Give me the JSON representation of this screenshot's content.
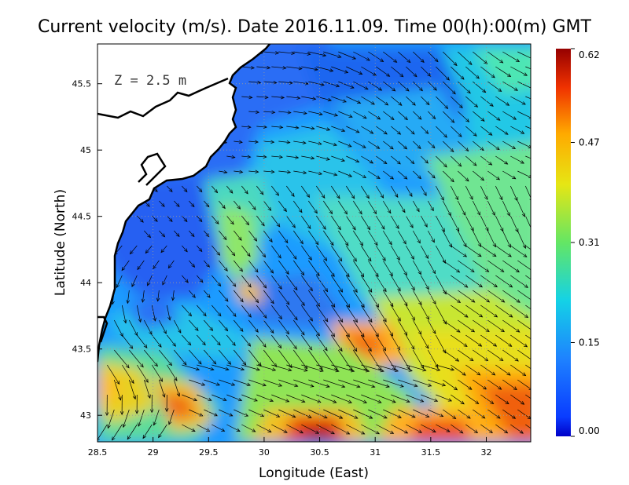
{
  "title": "Current velocity (m/s). Date 2016.11.09. Time 00(h):00(m) GMT",
  "depth_label": "Z = 2.5 m",
  "chart_data": {
    "type": "heatmap",
    "title": "Current velocity (m/s). Date 2016.11.09. Time 00(h):00(m) GMT",
    "xlabel": "Longitude (East)",
    "ylabel": "Latitude (North)",
    "xlim": [
      28.5,
      32.4
    ],
    "ylim": [
      42.8,
      45.8
    ],
    "x_ticks": [
      {
        "value": 28.5,
        "label": "28.5"
      },
      {
        "value": 29,
        "label": "29"
      },
      {
        "value": 29.5,
        "label": "29.5"
      },
      {
        "value": 30,
        "label": "30"
      },
      {
        "value": 30.5,
        "label": "30.5"
      },
      {
        "value": 31,
        "label": "31"
      },
      {
        "value": 31.5,
        "label": "31.5"
      },
      {
        "value": 32,
        "label": "32"
      }
    ],
    "y_ticks": [
      {
        "value": 43,
        "label": "43"
      },
      {
        "value": 43.5,
        "label": "43.5"
      },
      {
        "value": 44,
        "label": "44"
      },
      {
        "value": 44.5,
        "label": "44.5"
      },
      {
        "value": 45,
        "label": "45"
      },
      {
        "value": 45.5,
        "label": "45.5"
      }
    ],
    "grid": true,
    "colorbar": {
      "range": [
        0.0,
        0.62
      ],
      "tick_labels": [
        "0.62",
        "0.47",
        "0.31",
        "0.15",
        "0.00"
      ],
      "tick_values": [
        0.62,
        0.47,
        0.31,
        0.15,
        0.0
      ],
      "colormap": "jet"
    }
  },
  "colors": {
    "land": "#ffffff",
    "coast": "#000000",
    "grid": "#999999",
    "arrow": "#000000"
  }
}
